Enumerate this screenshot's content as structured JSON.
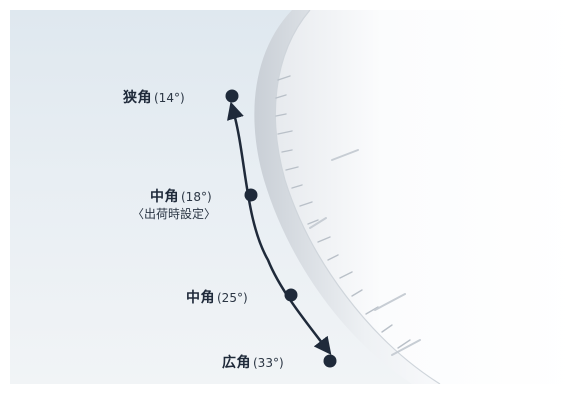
{
  "zoom_levels": [
    {
      "name": "狭角",
      "angle": "(14°)"
    },
    {
      "name": "中角",
      "angle": "(18°)",
      "note": "〈出荷時設定〉"
    },
    {
      "name": "中角",
      "angle": "(25°)"
    },
    {
      "name": "広角",
      "angle": "(33°)"
    }
  ],
  "colors": {
    "dot": "#1f2a3a",
    "arrow": "#1f2a3a",
    "text": "#1f2a3a"
  },
  "icons": {
    "device": "spotlight-lens-housing",
    "arrow": "double-headed-curved-arrow"
  }
}
